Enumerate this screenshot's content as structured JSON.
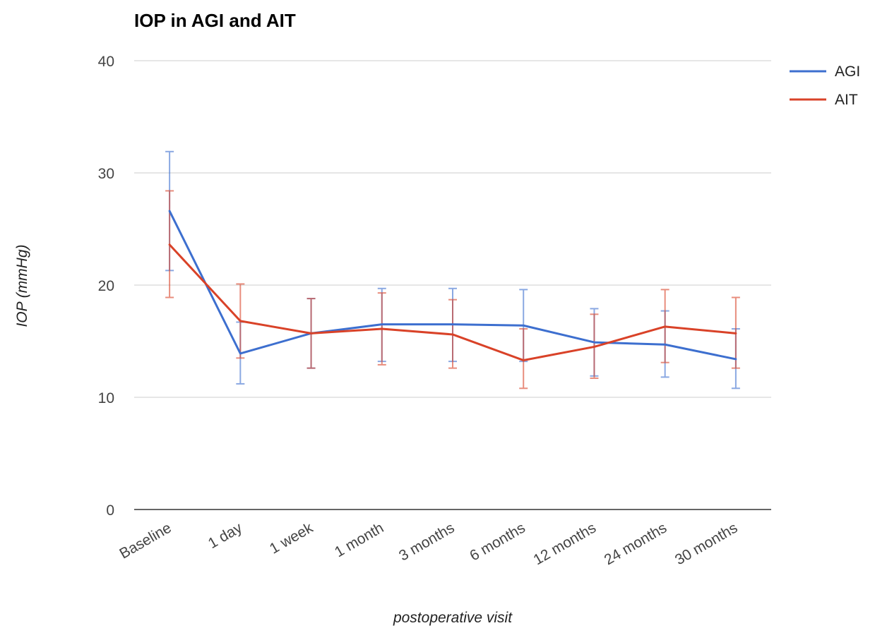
{
  "chart_data": {
    "type": "line",
    "title": "IOP in AGI and AIT",
    "xlabel": "postoperative visit",
    "ylabel": "IOP (mmHg)",
    "categories": [
      "Baseline",
      "1 day",
      "1 week",
      "1 month",
      "3 months",
      "6 months",
      "12 months",
      "24 months",
      "30 months"
    ],
    "ylim": [
      0,
      40
    ],
    "yticks": [
      0,
      10,
      20,
      30,
      40
    ],
    "grid": true,
    "legend_position": "right",
    "series": [
      {
        "name": "AGI",
        "color": "#3d6fcf",
        "values": [
          26.6,
          13.9,
          15.7,
          16.5,
          16.5,
          16.4,
          14.9,
          14.7,
          13.4
        ],
        "error_low": [
          21.3,
          11.2,
          12.6,
          13.2,
          13.2,
          13.2,
          11.9,
          11.8,
          10.8
        ],
        "error_high": [
          31.9,
          16.7,
          18.8,
          19.7,
          19.7,
          19.6,
          17.9,
          17.7,
          16.1
        ]
      },
      {
        "name": "AIT",
        "color": "#d94228",
        "values": [
          23.6,
          16.8,
          15.7,
          16.1,
          15.6,
          13.3,
          14.5,
          16.3,
          15.7
        ],
        "error_low": [
          18.9,
          13.5,
          12.6,
          12.9,
          12.6,
          10.8,
          11.7,
          13.1,
          12.6
        ],
        "error_high": [
          28.4,
          20.1,
          18.8,
          19.3,
          18.7,
          16.1,
          17.4,
          19.6,
          18.9
        ]
      }
    ]
  }
}
